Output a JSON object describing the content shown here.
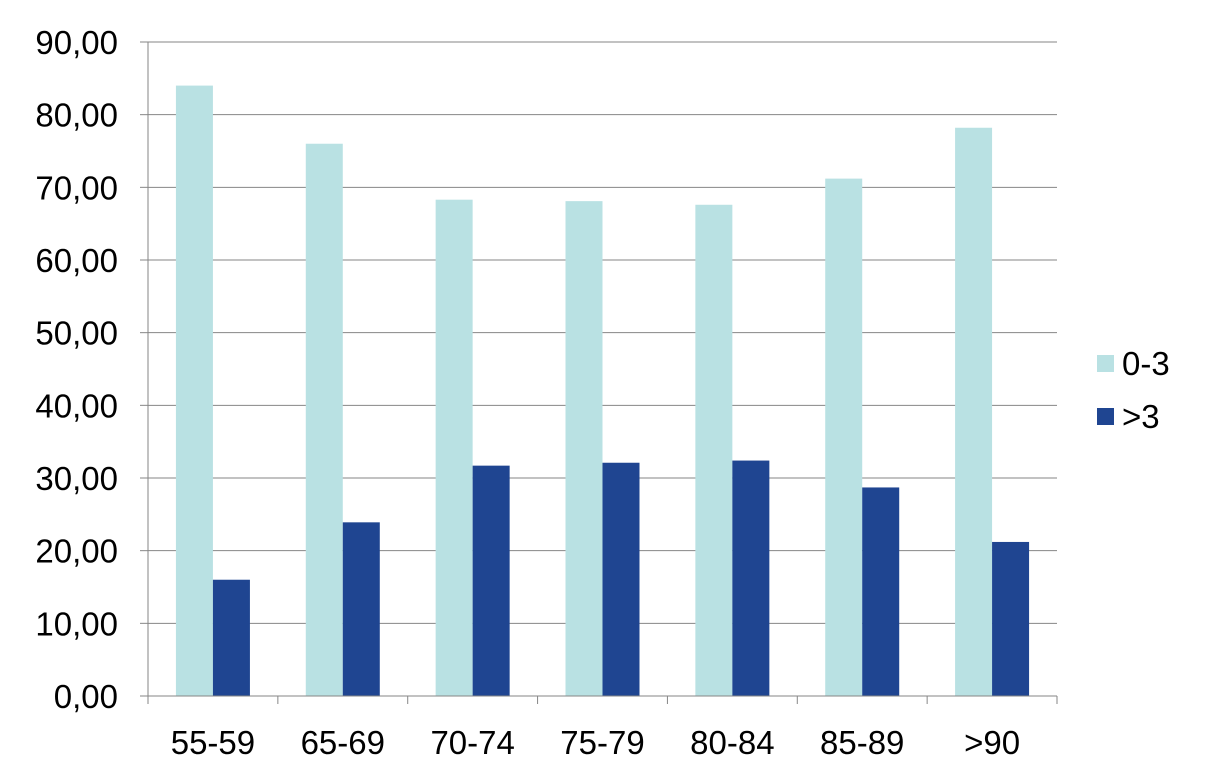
{
  "chart_data": {
    "type": "bar",
    "title": "",
    "xlabel": "",
    "ylabel": "",
    "categories": [
      "55-59",
      "65-69",
      "70-74",
      "75-79",
      "80-84",
      "85-89",
      ">90"
    ],
    "series": [
      {
        "name": "0-3",
        "color": "#B9E1E3",
        "values": [
          84.0,
          76.0,
          68.3,
          68.1,
          67.6,
          71.2,
          78.2
        ]
      },
      {
        "name": ">3",
        "color": "#1F4591",
        "values": [
          16.0,
          23.9,
          31.7,
          32.1,
          32.4,
          28.7,
          21.2
        ]
      }
    ],
    "ylim": [
      0,
      90
    ],
    "yticks": [
      "0,00",
      "10,00",
      "20,00",
      "30,00",
      "40,00",
      "50,00",
      "60,00",
      "70,00",
      "80,00",
      "90,00"
    ],
    "grid": true,
    "legend": "right"
  }
}
